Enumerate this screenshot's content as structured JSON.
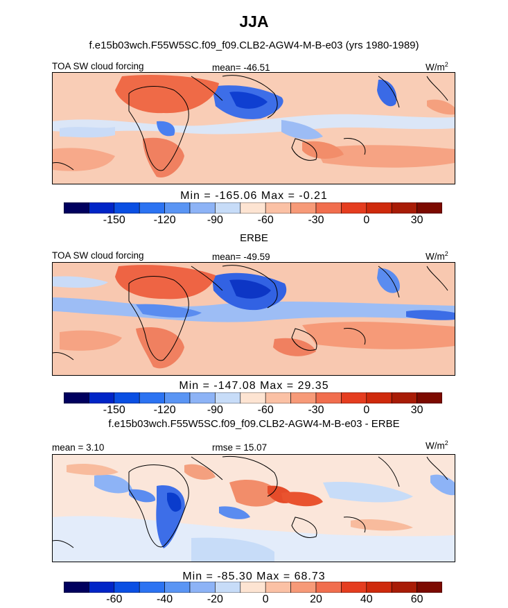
{
  "page": {
    "title": "JJA"
  },
  "palette": [
    "#00005e",
    "#0025c7",
    "#0a4fe3",
    "#2c73f2",
    "#5a95f4",
    "#8db3f6",
    "#c7dcf8",
    "#fde4d2",
    "#fbc1a5",
    "#f79a78",
    "#f16e4e",
    "#e53d1f",
    "#cf2a0c",
    "#a81c06",
    "#7c0a00"
  ],
  "panels": [
    {
      "id": "model",
      "subtitle": "f.e15b03wch.F55W5SC.f09_f09.CLB2-AGW4-M-B-e03 (yrs 1980-1989)",
      "left_label": "TOA SW cloud forcing",
      "center_label": "mean= -46.51",
      "units": "W/m",
      "units_sup": "2",
      "min_label": "Min = ",
      "min_value": "-165.06",
      "max_label": " Max = ",
      "max_value": "-0.21",
      "colorbar_ticks": [
        "-150",
        "-120",
        "-90",
        "-60",
        "-30",
        "0",
        "30"
      ],
      "colorbar_values": [
        -150,
        -120,
        -90,
        -60,
        -30,
        0,
        30
      ]
    },
    {
      "id": "obs",
      "subtitle": "ERBE",
      "left_label": "TOA SW cloud forcing",
      "center_label": "mean= -49.59",
      "units": "W/m",
      "units_sup": "2",
      "min_label": "Min = ",
      "min_value": "-147.08",
      "max_label": " Max = ",
      "max_value": "29.35",
      "colorbar_ticks": [
        "-150",
        "-120",
        "-90",
        "-60",
        "-30",
        "0",
        "30"
      ],
      "colorbar_values": [
        -150,
        -120,
        -90,
        -60,
        -30,
        0,
        30
      ]
    },
    {
      "id": "diff",
      "subtitle": "f.e15b03wch.F55W5SC.f09_f09.CLB2-AGW4-M-B-e03 - ERBE",
      "left_label": "mean = 3.10",
      "center_label": "rmse = 15.07",
      "units": "W/m",
      "units_sup": "2",
      "min_label": "Min = ",
      "min_value": "-85.30",
      "max_label": " Max = ",
      "max_value": "68.73",
      "colorbar_ticks": [
        "-60",
        "-40",
        "-20",
        "0",
        "20",
        "40",
        "60"
      ],
      "colorbar_values": [
        -60,
        -40,
        -20,
        0,
        20,
        40,
        60
      ]
    }
  ],
  "chart_data": [
    {
      "type": "heatmap",
      "title": "TOA SW cloud forcing",
      "subtitle": "f.e15b03wch.F55W5SC.f09_f09.CLB2-AGW4-M-B-e03 (yrs 1980-1989)",
      "season": "JJA",
      "units": "W/m2",
      "mean": -46.51,
      "min": -165.06,
      "max": -0.21,
      "colorbar_ticks": [
        -150,
        -120,
        -90,
        -60,
        -30,
        0,
        30
      ]
    },
    {
      "type": "heatmap",
      "title": "TOA SW cloud forcing",
      "subtitle": "ERBE",
      "season": "JJA",
      "units": "W/m2",
      "mean": -49.59,
      "min": -147.08,
      "max": 29.35,
      "colorbar_ticks": [
        -150,
        -120,
        -90,
        -60,
        -30,
        0,
        30
      ]
    },
    {
      "type": "heatmap",
      "title": "f.e15b03wch.F55W5SC.f09_f09.CLB2-AGW4-M-B-e03 - ERBE",
      "season": "JJA",
      "units": "W/m2",
      "mean": 3.1,
      "rmse": 15.07,
      "min": -85.3,
      "max": 68.73,
      "colorbar_ticks": [
        -60,
        -40,
        -20,
        0,
        20,
        40,
        60
      ]
    }
  ]
}
